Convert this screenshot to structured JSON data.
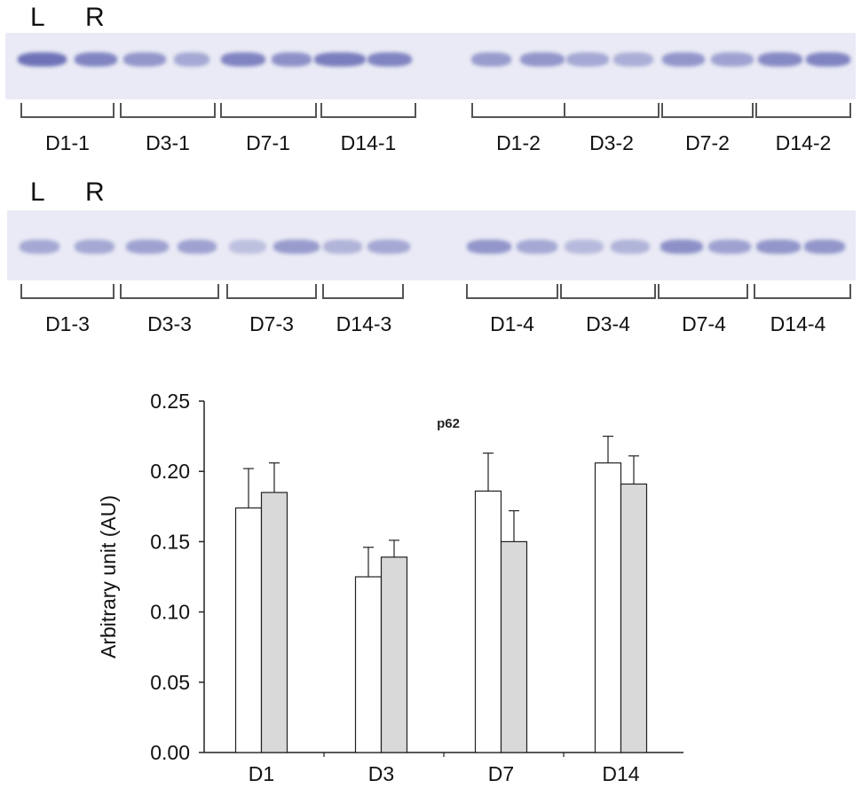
{
  "blot": {
    "lane_labels": [
      "L",
      "R",
      "L",
      "R"
    ],
    "row1": {
      "left_groups": [
        "D1-1",
        "D3-1",
        "D7-1",
        "D14-1"
      ],
      "right_groups": [
        "D1-2",
        "D3-2",
        "D7-2",
        "D14-2"
      ]
    },
    "row2": {
      "left_groups": [
        "D1-3",
        "D3-3",
        "D7-3",
        "D14-3"
      ],
      "right_groups": [
        "D1-4",
        "D3-4",
        "D7-4",
        "D14-4"
      ]
    },
    "membrane_color": "#e9eaf5",
    "band_color": "#6e73b8"
  },
  "chart_data": {
    "type": "bar",
    "title": "p62",
    "ylabel": "Arbitrary unit (AU)",
    "xlabel": "",
    "categories": [
      "D1",
      "D3",
      "D7",
      "D14"
    ],
    "ylim": [
      0,
      0.25
    ],
    "yticks": [
      "0.00",
      "0.05",
      "0.10",
      "0.15",
      "0.20",
      "0.25"
    ],
    "series": [
      {
        "values": [
          0.174,
          0.125,
          0.186,
          0.206
        ],
        "errors": [
          0.028,
          0.021,
          0.027,
          0.019
        ],
        "color": "#ffffff"
      },
      {
        "values": [
          0.185,
          0.139,
          0.15,
          0.191
        ],
        "errors": [
          0.021,
          0.012,
          0.022,
          0.02
        ],
        "color": "#d9d9d9"
      }
    ],
    "legend": "none",
    "grid": false
  }
}
